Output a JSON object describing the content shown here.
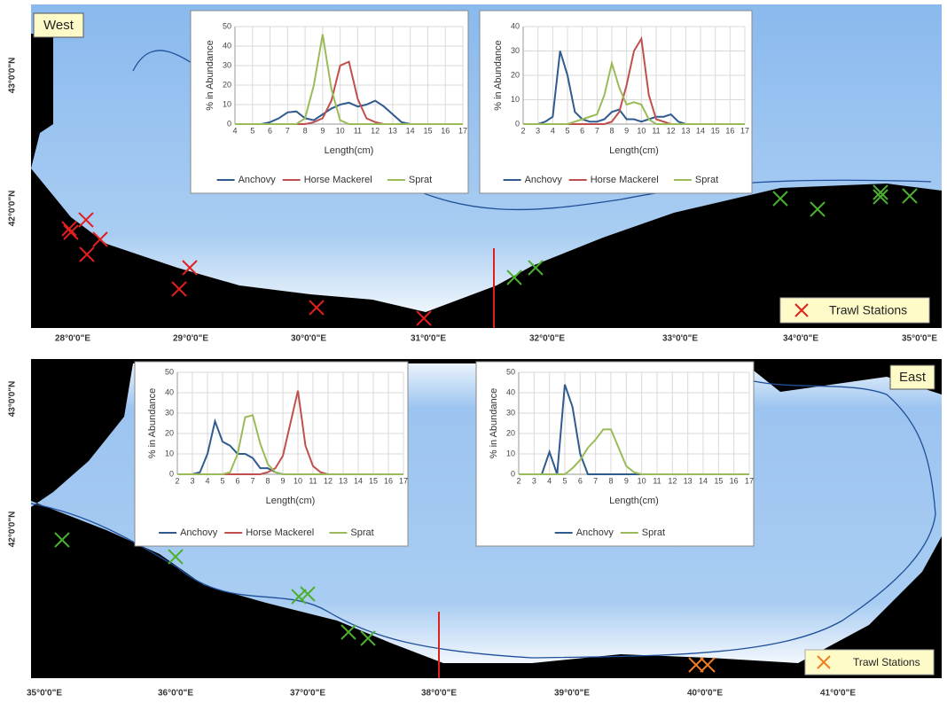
{
  "maps": [
    {
      "label": "West",
      "legend": "Trawl Stations",
      "lon_labels": [
        "28°0'0\"E",
        "29°0'0\"E",
        "30°0'0\"E",
        "31°0'0\"E",
        "32°0'0\"E",
        "33°0'0\"E",
        "34°0'0\"E",
        "35°0'0\"E"
      ],
      "lat_labels": [
        "43°0'0\"N",
        "42°0'0\"N"
      ]
    },
    {
      "label": "East",
      "legend": "Trawl Stations",
      "lon_labels": [
        "35°0'0\"E",
        "36°0'0\"E",
        "37°0'0\"E",
        "38°0'0\"E",
        "39°0'0\"E",
        "40°0'0\"E",
        "41°0'0\"E"
      ],
      "lat_labels": [
        "43°0'0\"N",
        "42°0'0\"N"
      ]
    }
  ],
  "chart_data": [
    {
      "type": "line",
      "x_label": "Length(cm)",
      "y_label": "% in Abundance",
      "grid": true,
      "x": [
        4,
        4.5,
        5,
        5.5,
        6,
        6.5,
        7,
        7.5,
        8,
        8.5,
        9,
        9.5,
        10,
        10.5,
        11,
        11.5,
        12,
        12.5,
        13,
        13.5,
        14,
        14.5,
        15,
        15.5,
        16,
        16.5,
        17
      ],
      "xlim": [
        4,
        17
      ],
      "xticks": [
        4,
        5,
        6,
        7,
        8,
        9,
        10,
        11,
        12,
        13,
        14,
        15,
        16,
        17
      ],
      "ylim": [
        0,
        50
      ],
      "yticks": [
        0,
        10,
        20,
        30,
        40,
        50
      ],
      "series": [
        {
          "name": "Anchovy",
          "color": "#2f5b8f",
          "values": [
            0,
            0,
            0,
            0,
            1,
            3,
            6,
            6.5,
            3,
            2,
            5,
            8,
            10,
            11,
            9,
            10,
            12,
            9,
            5,
            1,
            0,
            0,
            0,
            0,
            0,
            0,
            0
          ]
        },
        {
          "name": "Horse Mackerel",
          "color": "#c0504d",
          "values": [
            0,
            0,
            0,
            0,
            0,
            0,
            0,
            0,
            0,
            1,
            3,
            12,
            30,
            32,
            13,
            3,
            1,
            0,
            0,
            0,
            0,
            0,
            0,
            0,
            0,
            0,
            0
          ]
        },
        {
          "name": "Sprat",
          "color": "#9bbb59",
          "values": [
            0,
            0,
            0,
            0,
            0,
            0,
            0,
            0,
            3,
            20,
            46,
            18,
            2,
            0,
            0,
            0,
            0,
            0,
            0,
            0,
            0,
            0,
            0,
            0,
            0,
            0,
            0
          ]
        }
      ]
    },
    {
      "type": "line",
      "x_label": "Length(cm)",
      "y_label": "% in Abundance",
      "grid": true,
      "x": [
        2,
        2.5,
        3,
        3.5,
        4,
        4.5,
        5,
        5.5,
        6,
        6.5,
        7,
        7.5,
        8,
        8.5,
        9,
        9.5,
        10,
        10.5,
        11,
        11.5,
        12,
        12.5,
        13,
        13.5,
        14,
        14.5,
        15,
        15.5,
        16,
        16.5,
        17
      ],
      "xlim": [
        2,
        17
      ],
      "xticks": [
        2,
        3,
        4,
        5,
        6,
        7,
        8,
        9,
        10,
        11,
        12,
        13,
        14,
        15,
        16,
        17
      ],
      "ylim": [
        0,
        40
      ],
      "yticks": [
        0,
        10,
        20,
        30,
        40
      ],
      "series": [
        {
          "name": "Anchovy",
          "color": "#2f5b8f",
          "values": [
            0,
            0,
            0,
            1,
            3,
            30,
            20,
            5,
            2,
            1,
            1,
            2,
            5,
            6,
            2,
            2,
            1,
            2,
            3,
            3,
            4,
            1,
            0,
            0,
            0,
            0,
            0,
            0,
            0,
            0,
            0
          ]
        },
        {
          "name": "Horse Mackerel",
          "color": "#c0504d",
          "values": [
            0,
            0,
            0,
            0,
            0,
            0,
            0,
            0,
            0,
            0,
            0,
            0,
            1,
            5,
            16,
            30,
            35,
            12,
            2,
            1,
            0,
            0,
            0,
            0,
            0,
            0,
            0,
            0,
            0,
            0,
            0
          ]
        },
        {
          "name": "Sprat",
          "color": "#9bbb59",
          "values": [
            0,
            0,
            0,
            0,
            0,
            0,
            0,
            1,
            2,
            3,
            4,
            12,
            25,
            15,
            8,
            9,
            8,
            2,
            0,
            0,
            0,
            0,
            0,
            0,
            0,
            0,
            0,
            0,
            0,
            0,
            0
          ]
        }
      ]
    },
    {
      "type": "line",
      "x_label": "Length(cm)",
      "y_label": "% in Abundance",
      "grid": true,
      "x": [
        2,
        2.5,
        3,
        3.5,
        4,
        4.5,
        5,
        5.5,
        6,
        6.5,
        7,
        7.5,
        8,
        8.5,
        9,
        9.5,
        10,
        10.5,
        11,
        11.5,
        12,
        12.5,
        13,
        13.5,
        14,
        14.5,
        15,
        15.5,
        16,
        16.5,
        17
      ],
      "xlim": [
        2,
        17
      ],
      "xticks": [
        2,
        3,
        4,
        5,
        6,
        7,
        8,
        9,
        10,
        11,
        12,
        13,
        14,
        15,
        16,
        17
      ],
      "ylim": [
        0,
        50
      ],
      "yticks": [
        0,
        10,
        20,
        30,
        40,
        50
      ],
      "series": [
        {
          "name": "Anchovy",
          "color": "#2f5b8f",
          "values": [
            0,
            0,
            0,
            1,
            10,
            26,
            16,
            14,
            10,
            10,
            8,
            3,
            3,
            1,
            0,
            0,
            0,
            0,
            0,
            0,
            0,
            0,
            0,
            0,
            0,
            0,
            0,
            0,
            0,
            0,
            0
          ]
        },
        {
          "name": "Horse Mackerel",
          "color": "#c0504d",
          "values": [
            0,
            0,
            0,
            0,
            0,
            0,
            0,
            0,
            0,
            0,
            0,
            0,
            1,
            3,
            9,
            25,
            41,
            14,
            4,
            1,
            0,
            0,
            0,
            0,
            0,
            0,
            0,
            0,
            0,
            0,
            0
          ]
        },
        {
          "name": "Sprat",
          "color": "#9bbb59",
          "values": [
            0,
            0,
            0,
            0,
            0,
            0,
            0,
            1,
            10,
            28,
            29,
            15,
            5,
            1,
            0,
            0,
            0,
            0,
            0,
            0,
            0,
            0,
            0,
            0,
            0,
            0,
            0,
            0,
            0,
            0,
            0
          ]
        }
      ]
    },
    {
      "type": "line",
      "x_label": "Length(cm)",
      "y_label": "% in Abundance",
      "grid": true,
      "x": [
        2,
        2.5,
        3,
        3.5,
        4,
        4.5,
        5,
        5.5,
        6,
        6.5,
        7,
        7.5,
        8,
        8.5,
        9,
        9.5,
        10,
        10.5,
        11,
        11.5,
        12,
        12.5,
        13,
        13.5,
        14,
        14.5,
        15,
        15.5,
        16,
        16.5,
        17
      ],
      "xlim": [
        2,
        17
      ],
      "xticks": [
        2,
        3,
        4,
        5,
        6,
        7,
        8,
        9,
        10,
        11,
        12,
        13,
        14,
        15,
        16,
        17
      ],
      "ylim": [
        0,
        50
      ],
      "yticks": [
        0,
        10,
        20,
        30,
        40,
        50
      ],
      "series": [
        {
          "name": "Anchovy",
          "color": "#2f5b8f",
          "values": [
            0,
            0,
            0,
            0,
            11,
            0,
            44,
            33,
            10,
            0,
            0,
            0,
            0,
            0,
            0,
            0,
            0,
            0,
            0,
            0,
            0,
            0,
            0,
            0,
            0,
            0,
            0,
            0,
            0,
            0,
            0
          ]
        },
        {
          "name": "Sprat",
          "color": "#9bbb59",
          "values": [
            0,
            0,
            0,
            0,
            0,
            0,
            0,
            3,
            7,
            13,
            17,
            22,
            22,
            13,
            4,
            1,
            0,
            0,
            0,
            0,
            0,
            0,
            0,
            0,
            0,
            0,
            0,
            0,
            0,
            0,
            0
          ]
        }
      ]
    }
  ]
}
